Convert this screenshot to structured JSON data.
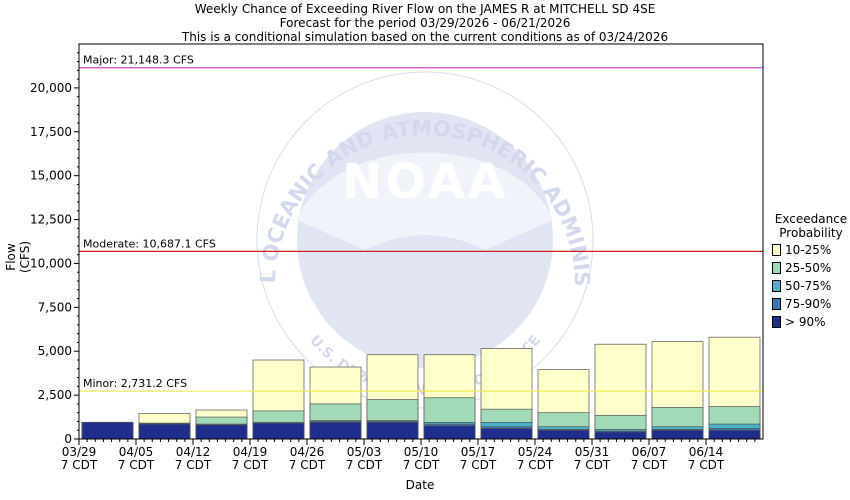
{
  "chart_data": {
    "type": "bar",
    "title": [
      "Weekly Chance of Exceeding River Flow on the JAMES R at MITCHELL SD 4SE",
      "Forecast for the period 03/29/2026 - 06/21/2026",
      "This is a conditional simulation based on the current conditions as of 03/24/2026"
    ],
    "xlabel": "Date",
    "ylabel": "Flow (CFS)",
    "ylim": [
      0,
      22500
    ],
    "yticks": [
      0,
      2500,
      5000,
      7500,
      10000,
      12500,
      15000,
      17500,
      20000
    ],
    "ytick_labels": [
      "0",
      "2,500",
      "5,000",
      "7,500",
      "10,000",
      "12,500",
      "15,000",
      "17,500",
      "20,000"
    ],
    "grid": false,
    "legend_position": "right",
    "categories": [
      "03/29",
      "04/05",
      "04/12",
      "04/19",
      "04/26",
      "05/03",
      "05/10",
      "05/17",
      "05/24",
      "05/31",
      "06/07",
      "06/14"
    ],
    "category_sublabel": "7 CDT",
    "legend_title": [
      "Exceedance",
      "Probability"
    ],
    "series": [
      {
        "name": "> 90%",
        "color": "#1f2e8c",
        "values": [
          950,
          850,
          800,
          900,
          950,
          950,
          750,
          600,
          500,
          400,
          500,
          500
        ]
      },
      {
        "name": "75-90%",
        "color": "#3c78b4",
        "values": [
          950,
          850,
          800,
          900,
          1000,
          1000,
          850,
          700,
          550,
          450,
          550,
          600
        ]
      },
      {
        "name": "50-75%",
        "color": "#49b2c8",
        "values": [
          950,
          900,
          850,
          950,
          1050,
          1050,
          950,
          950,
          700,
          550,
          700,
          850
        ]
      },
      {
        "name": "25-50%",
        "color": "#a2d9b6",
        "values": [
          950,
          900,
          1250,
          1600,
          2000,
          2250,
          2350,
          1700,
          1500,
          1350,
          1800,
          1850
        ]
      },
      {
        "name": "10-25%",
        "color": "#ffffcc",
        "values": [
          950,
          1450,
          1650,
          4500,
          4100,
          4800,
          4800,
          5150,
          3950,
          5400,
          5550,
          5800
        ]
      }
    ],
    "thresholds": [
      {
        "label": "Major: 21,148.3 CFS",
        "value": 21148.3,
        "color": "#cc44cc"
      },
      {
        "label": "Moderate: 10,687.1 CFS",
        "value": 10687.1,
        "color": "#cc2222"
      },
      {
        "label": "Minor: 2,731.2 CFS",
        "value": 2731.2,
        "color": "#e8e84a"
      }
    ],
    "watermark": {
      "logo_text": "NOAA",
      "ring_text": "NATIONAL OCEANIC AND ATMOSPHERIC ADMINISTRATION",
      "bottom_text": "U.S. DEPARTMENT OF COMMERCE"
    }
  }
}
